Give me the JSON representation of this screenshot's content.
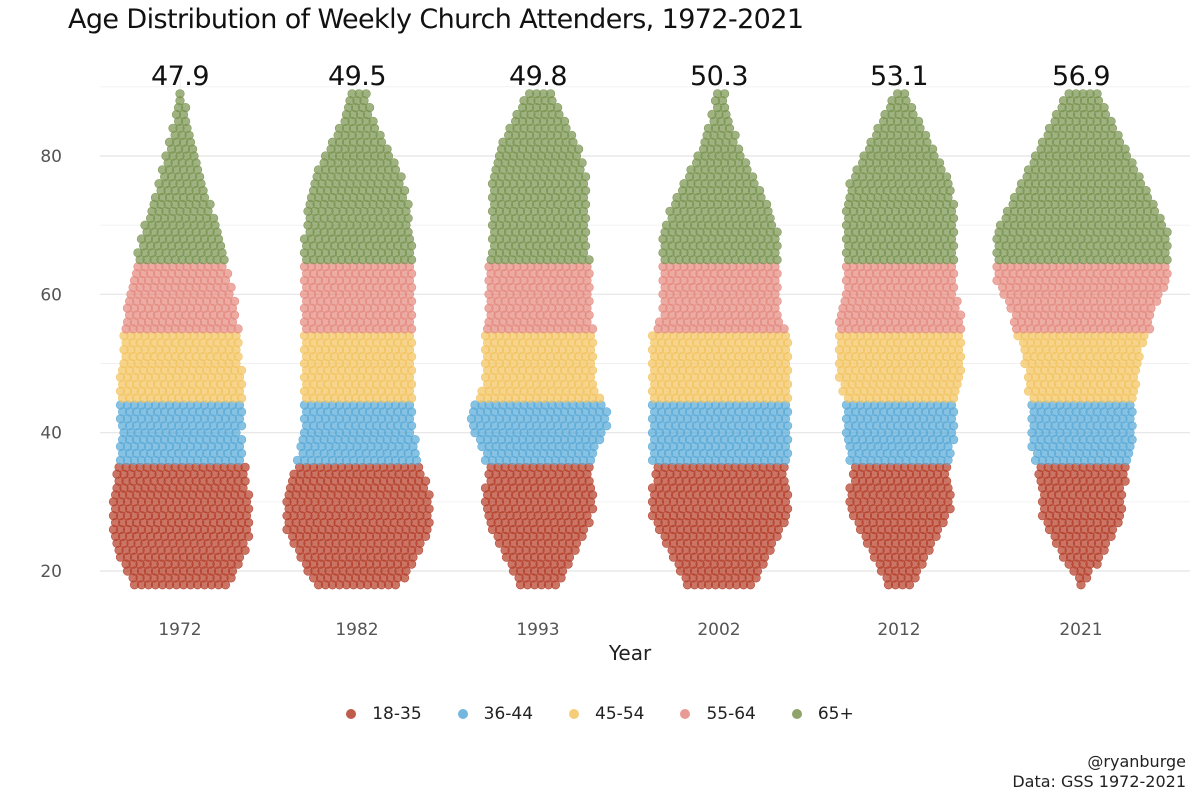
{
  "title": "Age Distribution of Weekly Church Attenders, 1972-2021",
  "chart_data": {
    "type": "scatter",
    "subtype": "beeswarm",
    "title": "Age Distribution of Weekly Church Attenders, 1972-2021",
    "xlabel": "Year",
    "ylabel": "",
    "ylim": [
      16,
      91
    ],
    "yticks": [
      20,
      40,
      60,
      80
    ],
    "grid": true,
    "legend_position": "bottom",
    "categories": [
      "1972",
      "1982",
      "1993",
      "2002",
      "2012",
      "2021"
    ],
    "mean_labels": [
      "47.9",
      "49.5",
      "49.8",
      "50.3",
      "53.1",
      "56.9"
    ],
    "groups": [
      {
        "name": "18-35",
        "range": [
          18,
          35
        ],
        "color": "#b5402b"
      },
      {
        "name": "36-44",
        "range": [
          36,
          44
        ],
        "color": "#5aaad8"
      },
      {
        "name": "45-54",
        "range": [
          45,
          54
        ],
        "color": "#f3c460"
      },
      {
        "name": "55-64",
        "range": [
          55,
          64
        ],
        "color": "#e48a80"
      },
      {
        "name": "65+",
        "range": [
          65,
          89
        ],
        "color": "#7a9450"
      }
    ],
    "age_counts": {
      "1972": [
        14,
        15,
        16,
        17,
        18,
        19,
        19,
        20,
        20,
        20,
        20,
        20,
        20,
        20,
        19,
        19,
        19,
        19,
        18,
        18,
        18,
        18,
        17,
        18,
        18,
        18,
        18,
        18,
        18,
        18,
        18,
        18,
        17,
        17,
        17,
        17,
        17,
        17,
        16,
        16,
        16,
        16,
        15,
        15,
        14,
        14,
        13,
        13,
        13,
        12,
        12,
        11,
        11,
        10,
        9,
        9,
        8,
        7,
        7,
        6,
        6,
        5,
        5,
        4,
        4,
        3,
        3,
        2,
        2,
        2,
        1,
        1
      ],
      "1982": [
        12,
        14,
        15,
        16,
        17,
        18,
        19,
        20,
        21,
        21,
        21,
        21,
        21,
        21,
        20,
        20,
        19,
        18,
        18,
        17,
        17,
        17,
        16,
        16,
        16,
        16,
        16,
        16,
        16,
        16,
        16,
        16,
        16,
        16,
        16,
        16,
        16,
        16,
        16,
        16,
        16,
        16,
        16,
        16,
        16,
        16,
        16,
        16,
        16,
        16,
        16,
        15,
        15,
        15,
        15,
        15,
        14,
        14,
        13,
        13,
        12,
        11,
        10,
        9,
        8,
        7,
        6,
        5,
        4,
        4,
        3,
        3
      ],
      "1993": [
        6,
        7,
        8,
        9,
        10,
        11,
        12,
        13,
        14,
        15,
        15,
        16,
        16,
        16,
        16,
        15,
        15,
        15,
        16,
        16,
        17,
        18,
        19,
        20,
        20,
        20,
        19,
        18,
        17,
        16,
        16,
        16,
        16,
        16,
        16,
        16,
        16,
        16,
        15,
        15,
        15,
        15,
        15,
        15,
        15,
        15,
        15,
        15,
        14,
        14,
        14,
        14,
        14,
        14,
        14,
        14,
        14,
        14,
        14,
        14,
        13,
        13,
        12,
        12,
        11,
        10,
        9,
        8,
        7,
        6,
        5,
        4
      ],
      "2002": [
        10,
        11,
        12,
        13,
        14,
        15,
        16,
        17,
        18,
        19,
        20,
        20,
        20,
        20,
        20,
        19,
        19,
        19,
        20,
        20,
        20,
        20,
        20,
        20,
        20,
        20,
        20,
        20,
        20,
        20,
        20,
        20,
        20,
        20,
        20,
        20,
        20,
        19,
        18,
        17,
        17,
        17,
        17,
        17,
        17,
        17,
        17,
        17,
        17,
        17,
        17,
        17,
        16,
        15,
        15,
        14,
        13,
        12,
        11,
        10,
        9,
        8,
        7,
        6,
        5,
        5,
        4,
        3,
        3,
        2,
        2,
        2
      ],
      "2012": [
        4,
        5,
        6,
        7,
        8,
        9,
        10,
        11,
        12,
        13,
        14,
        15,
        15,
        15,
        15,
        14,
        14,
        14,
        15,
        15,
        15,
        16,
        16,
        16,
        16,
        16,
        16,
        16,
        17,
        17,
        18,
        18,
        18,
        18,
        18,
        18,
        18,
        18,
        18,
        18,
        17,
        17,
        16,
        16,
        16,
        16,
        16,
        16,
        16,
        16,
        16,
        16,
        16,
        16,
        16,
        16,
        15,
        15,
        15,
        14,
        13,
        12,
        11,
        10,
        9,
        8,
        7,
        6,
        5,
        4,
        3,
        2
      ],
      "2021": [
        1,
        2,
        3,
        5,
        6,
        7,
        8,
        9,
        10,
        11,
        12,
        12,
        12,
        12,
        12,
        13,
        13,
        13,
        14,
        14,
        15,
        15,
        15,
        15,
        15,
        15,
        15,
        15,
        16,
        16,
        16,
        16,
        17,
        17,
        17,
        18,
        19,
        20,
        20,
        20,
        21,
        22,
        23,
        24,
        25,
        25,
        25,
        25,
        25,
        25,
        25,
        25,
        24,
        23,
        22,
        21,
        20,
        19,
        18,
        17,
        16,
        15,
        14,
        13,
        12,
        11,
        10,
        9,
        8,
        7,
        6,
        5
      ]
    }
  },
  "caption": {
    "author": "@ryanburge",
    "source": "Data: GSS 1972-2021"
  }
}
